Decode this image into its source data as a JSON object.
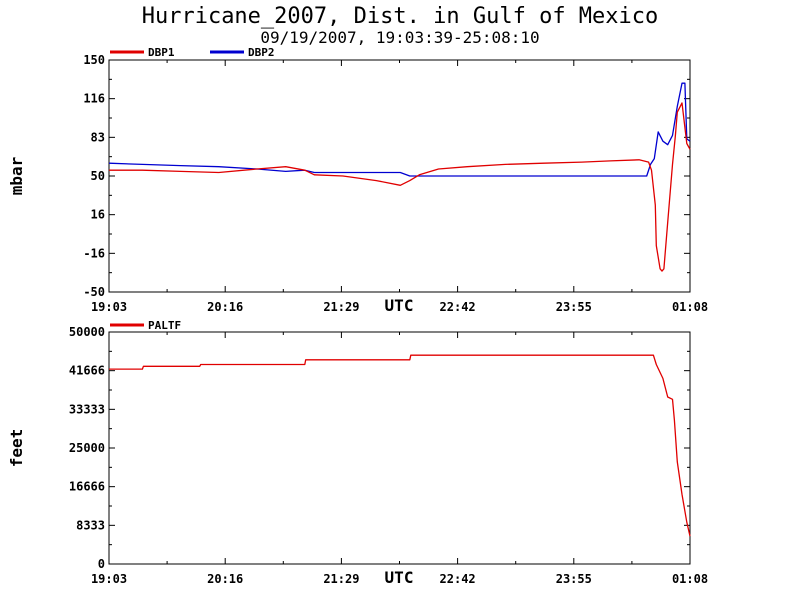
{
  "title": "Hurricane_2007, Dist. in Gulf of Mexico",
  "subtitle": "09/19/2007, 19:03:39-25:08:10",
  "colors": {
    "red": "#e00000",
    "blue": "#0000d0",
    "axis": "#000000"
  },
  "chart_data": [
    {
      "type": "line",
      "ylabel": "mbar",
      "xlabel": "UTC",
      "ylim": [
        -50,
        150
      ],
      "yticks": [
        "150",
        "116",
        "83",
        "50",
        "16",
        "-16",
        "-50"
      ],
      "xticks": [
        "19:03",
        "20:16",
        "21:29",
        "22:42",
        "23:55",
        "01:08"
      ],
      "xlim_hours": [
        19.05,
        25.1333
      ],
      "grid": false,
      "legend_position": "top-left",
      "series": [
        {
          "name": "DBP1",
          "color": "#e00000",
          "x": [
            19.05,
            19.4,
            19.8,
            20.2,
            20.6,
            20.9,
            21.1,
            21.2,
            21.5,
            21.85,
            22.1,
            22.2,
            22.3,
            22.5,
            22.8,
            23.2,
            23.6,
            24.0,
            24.3,
            24.6,
            24.7,
            24.73,
            24.77,
            24.78,
            24.82,
            24.84,
            24.86,
            24.9,
            24.95,
            24.98,
            25.0,
            25.05,
            25.1,
            25.1333
          ],
          "y": [
            55,
            55,
            54,
            53,
            56,
            58,
            55,
            51,
            50,
            46,
            42,
            46,
            51,
            56,
            58,
            60,
            61,
            62,
            63,
            64,
            62,
            55,
            25,
            -10,
            -30,
            -32,
            -30,
            10,
            60,
            85,
            105,
            113,
            78,
            73
          ]
        },
        {
          "name": "DBP2",
          "color": "#0000d0",
          "x": [
            19.05,
            19.4,
            19.8,
            20.2,
            20.6,
            20.9,
            21.1,
            21.2,
            21.5,
            21.85,
            22.1,
            22.2,
            22.3,
            22.8,
            23.2,
            23.6,
            24.0,
            24.3,
            24.6,
            24.68,
            24.72,
            24.76,
            24.8,
            24.85,
            24.9,
            24.95,
            25.0,
            25.05,
            25.08,
            25.1,
            25.1333
          ],
          "y": [
            61,
            60,
            59,
            58,
            56,
            54,
            55,
            53,
            53,
            53,
            53,
            50,
            50,
            50,
            50,
            50,
            50,
            50,
            50,
            50,
            60,
            65,
            88,
            80,
            77,
            85,
            110,
            130,
            130,
            82,
            80
          ]
        }
      ]
    },
    {
      "type": "line",
      "ylabel": "feet",
      "xlabel": "UTC",
      "ylim": [
        0,
        50000
      ],
      "yticks": [
        "50000",
        "41666",
        "33333",
        "25000",
        "16666",
        "8333",
        "0"
      ],
      "xticks": [
        "19:03",
        "20:16",
        "21:29",
        "22:42",
        "23:55",
        "01:08"
      ],
      "xlim_hours": [
        19.05,
        25.1333
      ],
      "grid": false,
      "legend_position": "top-left",
      "series": [
        {
          "name": "PALTF",
          "color": "#e00000",
          "x": [
            19.05,
            19.4,
            19.41,
            20.0,
            20.01,
            20.5,
            21.0,
            21.1,
            21.11,
            22.0,
            22.2,
            22.21,
            23.0,
            24.0,
            24.5,
            24.75,
            24.78,
            24.85,
            24.9,
            24.95,
            24.97,
            25.0,
            25.05,
            25.1,
            25.1333
          ],
          "y": [
            42000,
            42000,
            42600,
            42600,
            43000,
            43000,
            43000,
            43000,
            44000,
            44000,
            44000,
            45000,
            45000,
            45000,
            45000,
            45000,
            43000,
            40000,
            36000,
            35500,
            31000,
            22000,
            15000,
            9000,
            6000
          ]
        }
      ]
    }
  ]
}
